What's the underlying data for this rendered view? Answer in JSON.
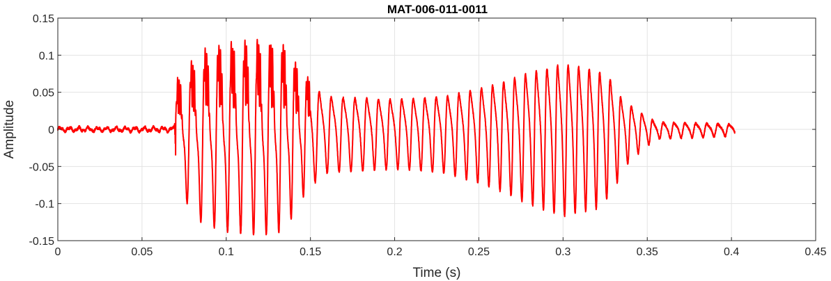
{
  "chart_data": {
    "type": "line",
    "title": "MAT-006-011-0011",
    "xlabel": "Time (s)",
    "ylabel": "Amplitude",
    "xlim": [
      0,
      0.45
    ],
    "ylim": [
      -0.15,
      0.15
    ],
    "grid": true,
    "legend": "none",
    "xticks": [
      0,
      0.05,
      0.1,
      0.15,
      0.2,
      0.25,
      0.3,
      0.35,
      0.4,
      0.45
    ],
    "xtick_labels": [
      "0",
      "0.05",
      "0.1",
      "0.15",
      "0.2",
      "0.25",
      "0.3",
      "0.35",
      "0.4",
      "0.45"
    ],
    "yticks": [
      -0.15,
      -0.1,
      -0.05,
      0,
      0.05,
      0.1,
      0.15
    ],
    "ytick_labels": [
      "-0.15",
      "-0.1",
      "-0.05",
      "0",
      "0.05",
      "0.1",
      "0.15"
    ],
    "series": [
      {
        "color": "#ff0000",
        "signal": {
          "time_range": [
            0,
            0.402
          ],
          "onset": 0.07,
          "end": 0.402,
          "envelope": [
            [
              0,
              0.004
            ],
            [
              0.069,
              0.004
            ],
            [
              0.071,
              0.07
            ],
            [
              0.085,
              0.11
            ],
            [
              0.1,
              0.12
            ],
            [
              0.12,
              0.125
            ],
            [
              0.135,
              0.12
            ],
            [
              0.145,
              0.08
            ],
            [
              0.16,
              0.055
            ],
            [
              0.2,
              0.05
            ],
            [
              0.23,
              0.055
            ],
            [
              0.26,
              0.075
            ],
            [
              0.28,
              0.095
            ],
            [
              0.3,
              0.11
            ],
            [
              0.32,
              0.1
            ],
            [
              0.33,
              0.08
            ],
            [
              0.335,
              0.05
            ],
            [
              0.345,
              0.03
            ],
            [
              0.355,
              0.012
            ],
            [
              0.402,
              0.008
            ]
          ],
          "f0_hz": [
            [
              0.07,
              120
            ],
            [
              0.15,
              140
            ],
            [
              0.2,
              145
            ],
            [
              0.25,
              150
            ],
            [
              0.3,
              160
            ],
            [
              0.34,
              160
            ],
            [
              0.402,
              150
            ]
          ]
        }
      }
    ]
  }
}
